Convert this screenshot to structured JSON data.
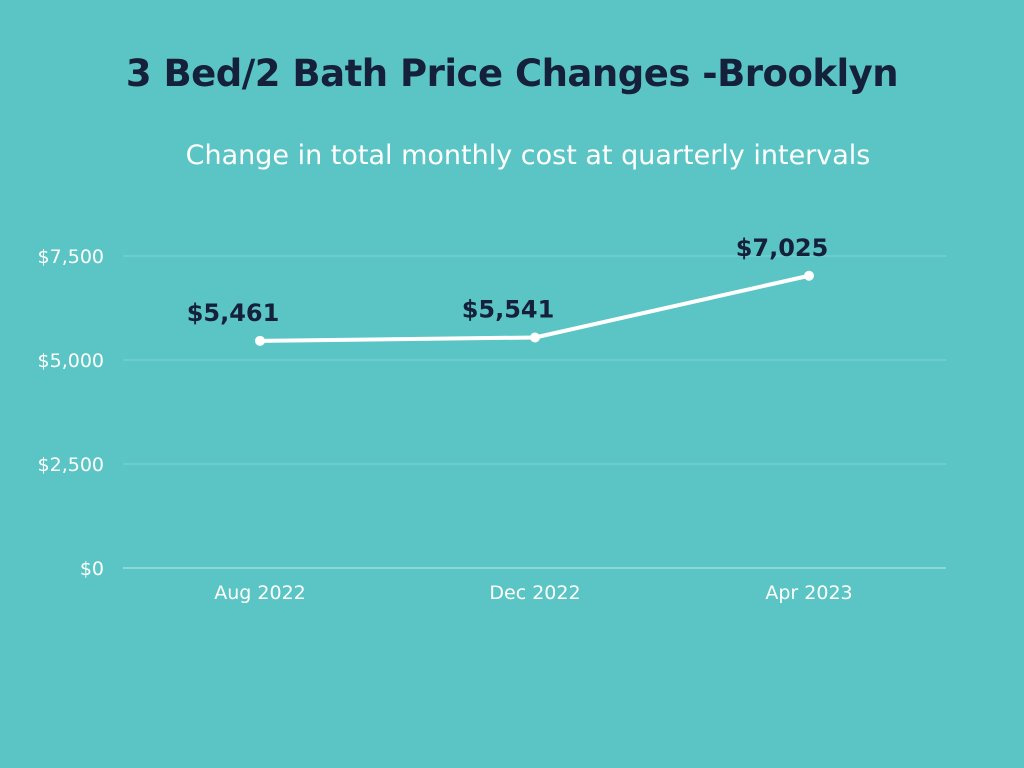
{
  "chart_data": {
    "type": "line",
    "title": "3 Bed/2 Bath Price Changes -Brooklyn",
    "subtitle": "Change in total monthly cost at quarterly intervals",
    "categories": [
      "Aug 2022",
      "Dec 2022",
      "Apr 2023"
    ],
    "series": [
      {
        "name": "Total monthly cost",
        "values": [
          5461,
          5541,
          7025
        ],
        "labels": [
          "$5,461",
          "$5,541",
          "$7,025"
        ]
      }
    ],
    "ylim": [
      0,
      7500
    ],
    "yticks": [
      0,
      2500,
      5000,
      7500
    ],
    "ytick_labels": [
      "$0",
      "$2,500",
      "$5,000",
      "$7,500"
    ],
    "xlabel": "",
    "ylabel": "",
    "grid": true,
    "legend": "none"
  },
  "colors": {
    "background": "#5bc5c5",
    "title": "#15203a",
    "line": "#ffffff",
    "grid": "#7fd3d3",
    "data_label": "#15203a"
  }
}
